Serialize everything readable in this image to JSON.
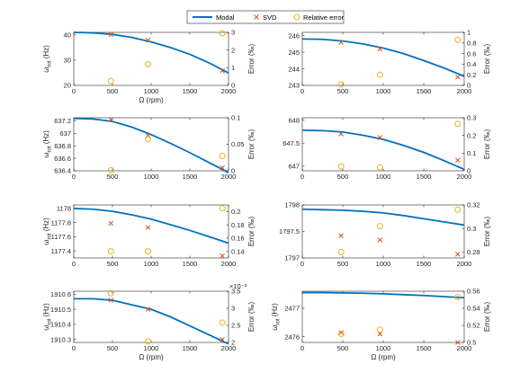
{
  "legend": {
    "entries": [
      {
        "label": "Modal",
        "color": "#0072BD",
        "marker": "line"
      },
      {
        "label": "SVD",
        "color": "#D95319",
        "marker": "x"
      },
      {
        "label": "Relative error",
        "color": "#EDB120",
        "marker": "circle"
      }
    ],
    "placement": "top-center"
  },
  "chart_data": [
    {
      "type": "line",
      "panel": "row1-left",
      "xlabel": "Ω (rpm)",
      "ylabel": "ω_rot (Hz)",
      "y2label": "Error (‰)",
      "xlim": [
        0,
        2000
      ],
      "ylim": [
        20,
        41
      ],
      "y2lim": [
        0,
        3
      ],
      "xticks": [
        0,
        500,
        1000,
        1500,
        2000
      ],
      "yticks": [
        20,
        30,
        40
      ],
      "y2ticks": [
        0,
        1,
        2,
        3
      ],
      "y2tick_labels": [
        "0",
        "1",
        "2",
        "3"
      ],
      "y2_exponent": "",
      "series": [
        {
          "name": "Modal",
          "kind": "line",
          "x": [
            0,
            250,
            500,
            750,
            1000,
            1250,
            1500,
            1750,
            2000
          ],
          "y": [
            41,
            40.8,
            40.2,
            39.0,
            37.2,
            35.0,
            32.3,
            28.9,
            24.9
          ]
        },
        {
          "name": "SVD",
          "kind": "x",
          "x": [
            480,
            960,
            1920
          ],
          "y": [
            40.1,
            37.9,
            25.8
          ]
        },
        {
          "name": "Relative error",
          "kind": "circle",
          "axis": "right",
          "x": [
            480,
            960,
            1920
          ],
          "y": [
            0.25,
            1.2,
            2.95
          ]
        }
      ]
    },
    {
      "type": "line",
      "panel": "row1-right",
      "xlabel": "",
      "ylabel": "",
      "y2label": "Error (‰)",
      "xlim": [
        0,
        2000
      ],
      "ylim": [
        243,
        246.2
      ],
      "y2lim": [
        0,
        1
      ],
      "xticks": [
        0,
        500,
        1000,
        1500,
        2000
      ],
      "yticks": [
        243,
        244,
        245,
        246
      ],
      "y2ticks": [
        0,
        0.2,
        0.4,
        0.6,
        0.8,
        1
      ],
      "y2tick_labels": [
        "0",
        "0.2",
        "0.4",
        "0.6",
        "0.8",
        "1"
      ],
      "y2_exponent": "",
      "series": [
        {
          "name": "Modal",
          "kind": "line",
          "x": [
            0,
            250,
            500,
            750,
            1000,
            1250,
            1500,
            1750,
            2000
          ],
          "y": [
            245.8,
            245.78,
            245.68,
            245.5,
            245.25,
            244.92,
            244.5,
            244.05,
            243.55
          ]
        },
        {
          "name": "SVD",
          "kind": "x",
          "x": [
            480,
            960,
            1920
          ],
          "y": [
            245.6,
            245.2,
            243.5
          ]
        },
        {
          "name": "Relative error",
          "kind": "circle",
          "axis": "right",
          "x": [
            480,
            960,
            1920
          ],
          "y": [
            0.02,
            0.2,
            0.86
          ]
        }
      ]
    },
    {
      "type": "line",
      "panel": "row2-left",
      "xlabel": "",
      "ylabel": "ω_rot (Hz)",
      "y2label": "Error (‰)",
      "xlim": [
        0,
        2000
      ],
      "ylim": [
        636.4,
        637.25
      ],
      "y2lim": [
        0,
        0.1
      ],
      "xticks": [
        0,
        500,
        1000,
        1500,
        2000
      ],
      "yticks": [
        636.4,
        636.6,
        636.8,
        637,
        637.2
      ],
      "y2ticks": [
        0,
        0.05,
        0.1
      ],
      "y2tick_labels": [
        "0",
        "0.05",
        "0.1"
      ],
      "y2_exponent": "",
      "series": [
        {
          "name": "Modal",
          "kind": "line",
          "x": [
            0,
            250,
            500,
            750,
            1000,
            1250,
            1500,
            1750,
            2000
          ],
          "y": [
            637.24,
            637.23,
            637.19,
            637.1,
            636.98,
            636.84,
            636.69,
            636.53,
            636.37
          ]
        },
        {
          "name": "SVD",
          "kind": "x",
          "x": [
            480,
            960,
            1920
          ],
          "y": [
            637.22,
            636.96,
            636.45
          ]
        },
        {
          "name": "Relative error",
          "kind": "circle",
          "axis": "right",
          "x": [
            480,
            960,
            1920
          ],
          "y": [
            0.001,
            0.06,
            0.028
          ]
        }
      ]
    },
    {
      "type": "line",
      "panel": "row2-right",
      "xlabel": "",
      "ylabel": "",
      "y2label": "Error (‰)",
      "xlim": [
        0,
        2000
      ],
      "ylim": [
        646.9,
        648.05
      ],
      "y2lim": [
        0,
        0.3
      ],
      "xticks": [
        0,
        500,
        1000,
        1500,
        2000
      ],
      "yticks": [
        647,
        647.5,
        648
      ],
      "y2ticks": [
        0,
        0.1,
        0.2,
        0.3
      ],
      "y2tick_labels": [
        "0",
        "0.1",
        "0.2",
        "0.3"
      ],
      "y2_exponent": "",
      "series": [
        {
          "name": "Modal",
          "kind": "line",
          "x": [
            0,
            250,
            500,
            750,
            1000,
            1250,
            1500,
            1750,
            2000
          ],
          "y": [
            647.78,
            647.77,
            647.74,
            647.67,
            647.58,
            647.45,
            647.3,
            647.12,
            646.93
          ]
        },
        {
          "name": "SVD",
          "kind": "x",
          "x": [
            480,
            960,
            1920
          ],
          "y": [
            647.7,
            647.62,
            647.13
          ]
        },
        {
          "name": "Relative error",
          "kind": "circle",
          "axis": "right",
          "x": [
            480,
            960,
            1920
          ],
          "y": [
            0.025,
            0.018,
            0.265
          ]
        }
      ]
    },
    {
      "type": "line",
      "panel": "row3-left",
      "xlabel": "",
      "ylabel": "ω_rot (Hz)",
      "y2label": "Error (‰)",
      "xlim": [
        0,
        2000
      ],
      "ylim": [
        1177.3,
        1178.05
      ],
      "y2lim": [
        0.13,
        0.21
      ],
      "xticks": [
        0,
        500,
        1000,
        1500,
        2000
      ],
      "yticks": [
        1177.4,
        1177.6,
        1177.8,
        1178
      ],
      "y2ticks": [
        0.14,
        0.16,
        0.18,
        0.2
      ],
      "y2tick_labels": [
        "0.14",
        "0.16",
        "0.18",
        "0.2"
      ],
      "y2_exponent": "",
      "series": [
        {
          "name": "Modal",
          "kind": "line",
          "x": [
            0,
            250,
            500,
            750,
            1000,
            1250,
            1500,
            1750,
            2000
          ],
          "y": [
            1178.0,
            1177.99,
            1177.96,
            1177.91,
            1177.85,
            1177.77,
            1177.69,
            1177.6,
            1177.51
          ]
        },
        {
          "name": "SVD",
          "kind": "x",
          "x": [
            480,
            960,
            1920
          ],
          "y": [
            1177.79,
            1177.73,
            1177.33
          ]
        },
        {
          "name": "Relative error",
          "kind": "circle",
          "axis": "right",
          "x": [
            480,
            960,
            1920
          ],
          "y": [
            0.14,
            0.14,
            0.205
          ]
        }
      ]
    },
    {
      "type": "line",
      "panel": "row3-right",
      "xlabel": "",
      "ylabel": "",
      "y2label": "Error (‰)",
      "xlim": [
        0,
        2000
      ],
      "ylim": [
        1797,
        1798
      ],
      "y2lim": [
        0.275,
        0.32
      ],
      "xticks": [
        0,
        500,
        1000,
        1500,
        2000
      ],
      "yticks": [
        1797,
        1797.5,
        1798
      ],
      "y2ticks": [
        0.28,
        0.3,
        0.32
      ],
      "y2tick_labels": [
        "0.28",
        "0.3",
        "0.32"
      ],
      "y2_exponent": "",
      "series": [
        {
          "name": "Modal",
          "kind": "line",
          "x": [
            0,
            250,
            500,
            750,
            1000,
            1250,
            1500,
            1750,
            2000
          ],
          "y": [
            1797.92,
            1797.91,
            1797.9,
            1797.88,
            1797.85,
            1797.8,
            1797.74,
            1797.68,
            1797.62
          ]
        },
        {
          "name": "SVD",
          "kind": "x",
          "x": [
            480,
            960,
            1920
          ],
          "y": [
            1797.42,
            1797.34,
            1797.07
          ]
        },
        {
          "name": "Relative error",
          "kind": "circle",
          "axis": "right",
          "x": [
            480,
            960,
            1920
          ],
          "y": [
            0.28,
            0.302,
            0.316
          ]
        }
      ]
    },
    {
      "type": "line",
      "panel": "row4-left",
      "xlabel": "Ω (rpm)",
      "ylabel": "ω_rot (Hz)",
      "y2label": "Error (‰)",
      "xlim": [
        0,
        2000
      ],
      "ylim": [
        1910.28,
        1910.62
      ],
      "y2lim": [
        0.002,
        0.0035
      ],
      "xticks": [
        0,
        500,
        1000,
        1500,
        2000
      ],
      "yticks": [
        1910.3,
        1910.4,
        1910.5,
        1910.6
      ],
      "y2ticks": [
        0.002,
        0.0025,
        0.003,
        0.0035
      ],
      "y2tick_labels": [
        "2",
        "2.5",
        "3",
        "3.5"
      ],
      "y2_exponent": "×10⁻³",
      "series": [
        {
          "name": "Modal",
          "kind": "line",
          "x": [
            0,
            250,
            500,
            750,
            1000,
            1250,
            1500,
            1750,
            2000
          ],
          "y": [
            1910.57,
            1910.57,
            1910.56,
            1910.53,
            1910.5,
            1910.45,
            1910.39,
            1910.33,
            1910.27
          ]
        },
        {
          "name": "SVD",
          "kind": "x",
          "x": [
            480,
            960,
            1920
          ],
          "y": [
            1910.56,
            1910.5,
            1910.3
          ]
        },
        {
          "name": "Relative error",
          "kind": "circle",
          "axis": "right",
          "x": [
            480,
            960,
            1920
          ],
          "y": [
            0.00344,
            0.00203,
            0.00258
          ]
        }
      ]
    },
    {
      "type": "line",
      "panel": "row4-right",
      "xlabel": "Ω (rpm)",
      "ylabel": "ω_rot (Hz)",
      "y2label": "Error (‰)",
      "xlim": [
        0,
        2000
      ],
      "ylim": [
        2475.8,
        2477.6
      ],
      "y2lim": [
        0.5,
        0.56
      ],
      "xticks": [
        0,
        500,
        1000,
        1500,
        2000
      ],
      "yticks": [
        2476,
        2477
      ],
      "y2ticks": [
        0.5,
        0.52,
        0.54,
        0.56
      ],
      "y2tick_labels": [
        "0.5",
        "0.52",
        "0.54",
        "0.56"
      ],
      "y2_exponent": "",
      "series": [
        {
          "name": "Modal",
          "kind": "line",
          "x": [
            0,
            250,
            500,
            750,
            1000,
            1250,
            1500,
            1750,
            2000
          ],
          "y": [
            2477.55,
            2477.55,
            2477.54,
            2477.53,
            2477.51,
            2477.48,
            2477.45,
            2477.41,
            2477.37
          ]
        },
        {
          "name": "SVD",
          "kind": "x",
          "x": [
            480,
            960,
            1920
          ],
          "y": [
            2476.15,
            2476.1,
            2475.8
          ]
        },
        {
          "name": "Relative error",
          "kind": "circle",
          "axis": "right",
          "x": [
            480,
            960,
            1920
          ],
          "y": [
            0.51,
            0.515,
            0.553
          ]
        }
      ]
    }
  ]
}
